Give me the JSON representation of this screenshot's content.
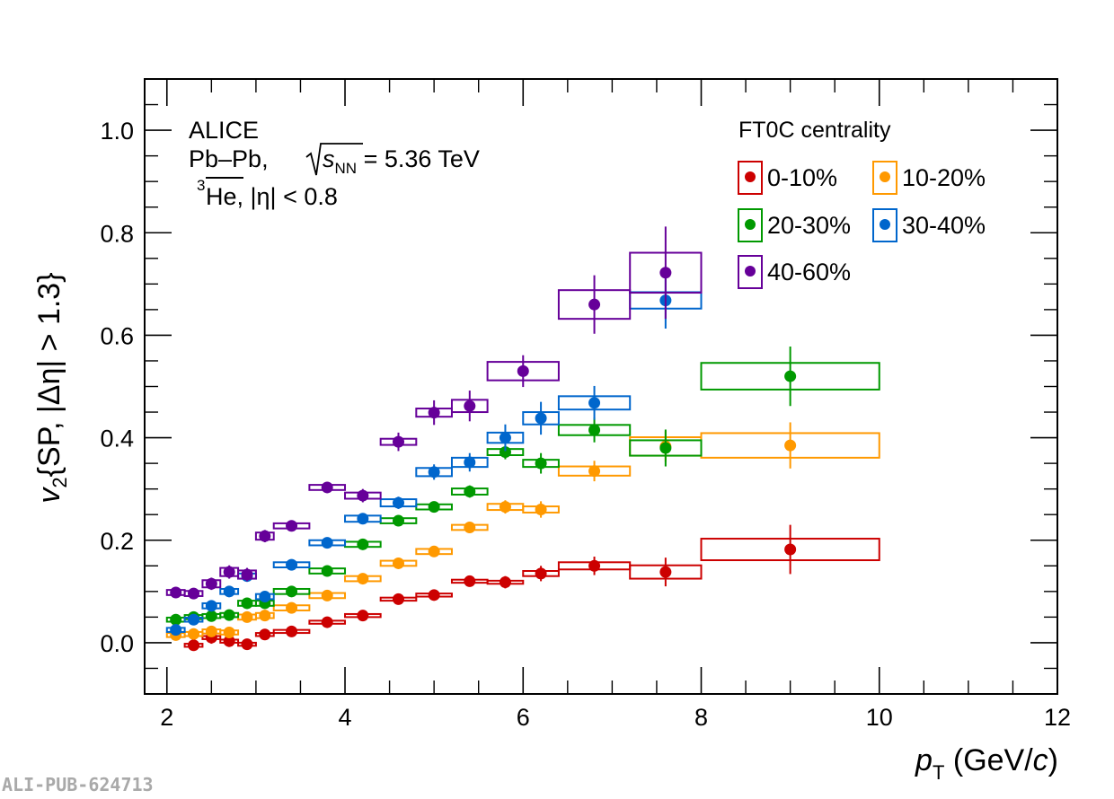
{
  "chart_data": {
    "type": "scatter",
    "title": "",
    "xlabel": "p_T (GeV/c)",
    "xlabel_parts": {
      "main": "p",
      "sub": "T",
      "units_open": " (GeV/",
      "units_c": "c",
      "units_close": ")"
    },
    "ylabel": "v2{SP, |Δη| > 1.3}",
    "ylabel_parts": {
      "main": "v",
      "sub": "2",
      "rest": "{SP, |Δη| > 1.3}"
    },
    "xlim": [
      1.75,
      12
    ],
    "ylim": [
      -0.1,
      1.1
    ],
    "x_ticks": [
      2,
      4,
      6,
      8,
      10,
      12
    ],
    "x_tick_labels": [
      "2",
      "4",
      "6",
      "8",
      "10",
      "12"
    ],
    "y_ticks": [
      0.0,
      0.2,
      0.4,
      0.6,
      0.8,
      1.0
    ],
    "y_tick_labels": [
      "0.0",
      "0.2",
      "0.4",
      "0.6",
      "0.8",
      "1.0"
    ],
    "grid": false,
    "annotations": {
      "experiment": "ALICE",
      "system": "Pb–Pb,",
      "energy_prefix": "s",
      "energy_sub": "NN",
      "energy_value": " = 5.36 TeV",
      "particle_sup": "3",
      "particle": "He",
      "particle_cut": ", |η| < 0.8"
    },
    "legend": {
      "title": "FT0C centrality",
      "placement": "top-right",
      "columns": 2
    },
    "series": [
      {
        "name": "0-10%",
        "color": "#cc0000",
        "points": [
          {
            "x": 2.3,
            "y": -0.005,
            "xlo": 2.2,
            "xhi": 2.4,
            "stat": 0.01,
            "syst": 0.003
          },
          {
            "x": 2.5,
            "y": 0.01,
            "xlo": 2.4,
            "xhi": 2.6,
            "stat": 0.012,
            "syst": 0.003
          },
          {
            "x": 2.7,
            "y": 0.003,
            "xlo": 2.6,
            "xhi": 2.8,
            "stat": 0.01,
            "syst": 0.003
          },
          {
            "x": 2.9,
            "y": -0.003,
            "xlo": 2.8,
            "xhi": 3.0,
            "stat": 0.01,
            "syst": 0.003
          },
          {
            "x": 3.1,
            "y": 0.016,
            "xlo": 3.0,
            "xhi": 3.2,
            "stat": 0.01,
            "syst": 0.003
          },
          {
            "x": 3.4,
            "y": 0.022,
            "xlo": 3.2,
            "xhi": 3.6,
            "stat": 0.008,
            "syst": 0.003
          },
          {
            "x": 3.8,
            "y": 0.04,
            "xlo": 3.6,
            "xhi": 4.0,
            "stat": 0.008,
            "syst": 0.003
          },
          {
            "x": 4.2,
            "y": 0.053,
            "xlo": 4.0,
            "xhi": 4.4,
            "stat": 0.008,
            "syst": 0.003
          },
          {
            "x": 4.6,
            "y": 0.085,
            "xlo": 4.4,
            "xhi": 4.8,
            "stat": 0.008,
            "syst": 0.003
          },
          {
            "x": 5.0,
            "y": 0.093,
            "xlo": 4.8,
            "xhi": 5.2,
            "stat": 0.008,
            "syst": 0.003
          },
          {
            "x": 5.4,
            "y": 0.12,
            "xlo": 5.2,
            "xhi": 5.6,
            "stat": 0.009,
            "syst": 0.003
          },
          {
            "x": 5.8,
            "y": 0.118,
            "xlo": 5.6,
            "xhi": 6.0,
            "stat": 0.012,
            "syst": 0.003
          },
          {
            "x": 6.2,
            "y": 0.135,
            "xlo": 6.0,
            "xhi": 6.4,
            "stat": 0.015,
            "syst": 0.005
          },
          {
            "x": 6.8,
            "y": 0.15,
            "xlo": 6.4,
            "xhi": 7.2,
            "stat": 0.018,
            "syst": 0.007
          },
          {
            "x": 7.6,
            "y": 0.138,
            "xlo": 7.2,
            "xhi": 8.0,
            "stat": 0.028,
            "syst": 0.013
          },
          {
            "x": 9.0,
            "y": 0.182,
            "xlo": 8.0,
            "xhi": 10.0,
            "stat": 0.048,
            "syst": 0.021
          }
        ]
      },
      {
        "name": "10-20%",
        "color": "#ff9900",
        "points": [
          {
            "x": 2.1,
            "y": 0.015,
            "xlo": 2.0,
            "xhi": 2.2,
            "stat": 0.008,
            "syst": 0.004
          },
          {
            "x": 2.3,
            "y": 0.017,
            "xlo": 2.2,
            "xhi": 2.4,
            "stat": 0.008,
            "syst": 0.004
          },
          {
            "x": 2.5,
            "y": 0.022,
            "xlo": 2.4,
            "xhi": 2.6,
            "stat": 0.008,
            "syst": 0.004
          },
          {
            "x": 2.7,
            "y": 0.02,
            "xlo": 2.6,
            "xhi": 2.8,
            "stat": 0.008,
            "syst": 0.004
          },
          {
            "x": 2.9,
            "y": 0.05,
            "xlo": 2.8,
            "xhi": 3.0,
            "stat": 0.008,
            "syst": 0.005
          },
          {
            "x": 3.1,
            "y": 0.053,
            "xlo": 3.0,
            "xhi": 3.2,
            "stat": 0.008,
            "syst": 0.005
          },
          {
            "x": 3.4,
            "y": 0.068,
            "xlo": 3.2,
            "xhi": 3.6,
            "stat": 0.008,
            "syst": 0.005
          },
          {
            "x": 3.8,
            "y": 0.092,
            "xlo": 3.6,
            "xhi": 4.0,
            "stat": 0.008,
            "syst": 0.005
          },
          {
            "x": 4.2,
            "y": 0.125,
            "xlo": 4.0,
            "xhi": 4.4,
            "stat": 0.008,
            "syst": 0.005
          },
          {
            "x": 4.6,
            "y": 0.155,
            "xlo": 4.4,
            "xhi": 4.8,
            "stat": 0.008,
            "syst": 0.005
          },
          {
            "x": 5.0,
            "y": 0.178,
            "xlo": 4.8,
            "xhi": 5.2,
            "stat": 0.009,
            "syst": 0.005
          },
          {
            "x": 5.4,
            "y": 0.225,
            "xlo": 5.2,
            "xhi": 5.6,
            "stat": 0.01,
            "syst": 0.005
          },
          {
            "x": 5.8,
            "y": 0.265,
            "xlo": 5.6,
            "xhi": 6.0,
            "stat": 0.013,
            "syst": 0.006
          },
          {
            "x": 6.2,
            "y": 0.26,
            "xlo": 6.0,
            "xhi": 6.4,
            "stat": 0.016,
            "syst": 0.006
          },
          {
            "x": 6.8,
            "y": 0.335,
            "xlo": 6.4,
            "xhi": 7.2,
            "stat": 0.02,
            "syst": 0.009
          },
          {
            "x": 7.6,
            "y": 0.383,
            "xlo": 7.2,
            "xhi": 8.0,
            "stat": 0.03,
            "syst": 0.018
          },
          {
            "x": 9.0,
            "y": 0.385,
            "xlo": 8.0,
            "xhi": 10.0,
            "stat": 0.045,
            "syst": 0.024
          }
        ]
      },
      {
        "name": "20-30%",
        "color": "#009900",
        "points": [
          {
            "x": 2.1,
            "y": 0.045,
            "xlo": 2.0,
            "xhi": 2.2,
            "stat": 0.008,
            "syst": 0.004
          },
          {
            "x": 2.3,
            "y": 0.05,
            "xlo": 2.2,
            "xhi": 2.4,
            "stat": 0.008,
            "syst": 0.004
          },
          {
            "x": 2.5,
            "y": 0.052,
            "xlo": 2.4,
            "xhi": 2.6,
            "stat": 0.008,
            "syst": 0.004
          },
          {
            "x": 2.7,
            "y": 0.054,
            "xlo": 2.6,
            "xhi": 2.8,
            "stat": 0.008,
            "syst": 0.004
          },
          {
            "x": 2.9,
            "y": 0.077,
            "xlo": 2.8,
            "xhi": 3.0,
            "stat": 0.008,
            "syst": 0.005
          },
          {
            "x": 3.1,
            "y": 0.077,
            "xlo": 3.0,
            "xhi": 3.2,
            "stat": 0.008,
            "syst": 0.005
          },
          {
            "x": 3.4,
            "y": 0.1,
            "xlo": 3.2,
            "xhi": 3.6,
            "stat": 0.008,
            "syst": 0.005
          },
          {
            "x": 3.8,
            "y": 0.14,
            "xlo": 3.6,
            "xhi": 4.0,
            "stat": 0.008,
            "syst": 0.005
          },
          {
            "x": 4.2,
            "y": 0.192,
            "xlo": 4.0,
            "xhi": 4.4,
            "stat": 0.008,
            "syst": 0.005
          },
          {
            "x": 4.6,
            "y": 0.238,
            "xlo": 4.4,
            "xhi": 4.8,
            "stat": 0.009,
            "syst": 0.005
          },
          {
            "x": 5.0,
            "y": 0.265,
            "xlo": 4.8,
            "xhi": 5.2,
            "stat": 0.01,
            "syst": 0.005
          },
          {
            "x": 5.4,
            "y": 0.295,
            "xlo": 5.2,
            "xhi": 5.6,
            "stat": 0.012,
            "syst": 0.006
          },
          {
            "x": 5.8,
            "y": 0.372,
            "xlo": 5.6,
            "xhi": 6.0,
            "stat": 0.014,
            "syst": 0.006
          },
          {
            "x": 6.2,
            "y": 0.35,
            "xlo": 6.0,
            "xhi": 6.4,
            "stat": 0.02,
            "syst": 0.007
          },
          {
            "x": 6.8,
            "y": 0.415,
            "xlo": 6.4,
            "xhi": 7.2,
            "stat": 0.024,
            "syst": 0.01
          },
          {
            "x": 7.6,
            "y": 0.38,
            "xlo": 7.2,
            "xhi": 8.0,
            "stat": 0.036,
            "syst": 0.015
          },
          {
            "x": 9.0,
            "y": 0.52,
            "xlo": 8.0,
            "xhi": 10.0,
            "stat": 0.058,
            "syst": 0.026
          }
        ]
      },
      {
        "name": "30-40%",
        "color": "#0066cc",
        "points": [
          {
            "x": 2.1,
            "y": 0.025,
            "xlo": 2.0,
            "xhi": 2.2,
            "stat": 0.008,
            "syst": 0.004
          },
          {
            "x": 2.3,
            "y": 0.045,
            "xlo": 2.2,
            "xhi": 2.4,
            "stat": 0.008,
            "syst": 0.004
          },
          {
            "x": 2.5,
            "y": 0.072,
            "xlo": 2.4,
            "xhi": 2.6,
            "stat": 0.009,
            "syst": 0.005
          },
          {
            "x": 2.7,
            "y": 0.1,
            "xlo": 2.6,
            "xhi": 2.8,
            "stat": 0.009,
            "syst": 0.005
          },
          {
            "x": 2.9,
            "y": 0.13,
            "xlo": 2.8,
            "xhi": 3.0,
            "stat": 0.009,
            "syst": 0.005
          },
          {
            "x": 3.1,
            "y": 0.09,
            "xlo": 3.0,
            "xhi": 3.2,
            "stat": 0.01,
            "syst": 0.005
          },
          {
            "x": 3.4,
            "y": 0.152,
            "xlo": 3.2,
            "xhi": 3.6,
            "stat": 0.009,
            "syst": 0.005
          },
          {
            "x": 3.8,
            "y": 0.195,
            "xlo": 3.6,
            "xhi": 4.0,
            "stat": 0.009,
            "syst": 0.005
          },
          {
            "x": 4.2,
            "y": 0.242,
            "xlo": 4.0,
            "xhi": 4.4,
            "stat": 0.01,
            "syst": 0.006
          },
          {
            "x": 4.6,
            "y": 0.273,
            "xlo": 4.4,
            "xhi": 4.8,
            "stat": 0.012,
            "syst": 0.007
          },
          {
            "x": 5.0,
            "y": 0.333,
            "xlo": 4.8,
            "xhi": 5.2,
            "stat": 0.015,
            "syst": 0.008
          },
          {
            "x": 5.4,
            "y": 0.352,
            "xlo": 5.2,
            "xhi": 5.6,
            "stat": 0.018,
            "syst": 0.009
          },
          {
            "x": 5.8,
            "y": 0.4,
            "xlo": 5.6,
            "xhi": 6.0,
            "stat": 0.026,
            "syst": 0.01
          },
          {
            "x": 6.2,
            "y": 0.438,
            "xlo": 6.0,
            "xhi": 6.4,
            "stat": 0.032,
            "syst": 0.012
          },
          {
            "x": 6.8,
            "y": 0.468,
            "xlo": 6.4,
            "xhi": 7.2,
            "stat": 0.033,
            "syst": 0.013
          },
          {
            "x": 7.6,
            "y": 0.668,
            "xlo": 7.2,
            "xhi": 8.0,
            "stat": 0.055,
            "syst": 0.016
          }
        ]
      },
      {
        "name": "40-60%",
        "color": "#660099",
        "points": [
          {
            "x": 2.1,
            "y": 0.098,
            "xlo": 2.0,
            "xhi": 2.2,
            "stat": 0.01,
            "syst": 0.005
          },
          {
            "x": 2.3,
            "y": 0.096,
            "xlo": 2.2,
            "xhi": 2.4,
            "stat": 0.01,
            "syst": 0.005
          },
          {
            "x": 2.5,
            "y": 0.115,
            "xlo": 2.4,
            "xhi": 2.6,
            "stat": 0.012,
            "syst": 0.007
          },
          {
            "x": 2.7,
            "y": 0.138,
            "xlo": 2.6,
            "xhi": 2.8,
            "stat": 0.013,
            "syst": 0.008
          },
          {
            "x": 2.9,
            "y": 0.133,
            "xlo": 2.8,
            "xhi": 3.0,
            "stat": 0.013,
            "syst": 0.008
          },
          {
            "x": 3.1,
            "y": 0.208,
            "xlo": 3.0,
            "xhi": 3.2,
            "stat": 0.012,
            "syst": 0.007
          },
          {
            "x": 3.4,
            "y": 0.228,
            "xlo": 3.2,
            "xhi": 3.6,
            "stat": 0.01,
            "syst": 0.005
          },
          {
            "x": 3.8,
            "y": 0.303,
            "xlo": 3.6,
            "xhi": 4.0,
            "stat": 0.01,
            "syst": 0.005
          },
          {
            "x": 4.2,
            "y": 0.287,
            "xlo": 4.0,
            "xhi": 4.4,
            "stat": 0.013,
            "syst": 0.006
          },
          {
            "x": 4.6,
            "y": 0.392,
            "xlo": 4.4,
            "xhi": 4.8,
            "stat": 0.018,
            "syst": 0.006
          },
          {
            "x": 5.0,
            "y": 0.449,
            "xlo": 4.8,
            "xhi": 5.2,
            "stat": 0.024,
            "syst": 0.008
          },
          {
            "x": 5.4,
            "y": 0.462,
            "xlo": 5.2,
            "xhi": 5.6,
            "stat": 0.03,
            "syst": 0.012
          },
          {
            "x": 6.0,
            "y": 0.53,
            "xlo": 5.6,
            "xhi": 6.4,
            "stat": 0.031,
            "syst": 0.018
          },
          {
            "x": 6.8,
            "y": 0.66,
            "xlo": 6.4,
            "xhi": 7.2,
            "stat": 0.057,
            "syst": 0.028
          },
          {
            "x": 7.6,
            "y": 0.722,
            "xlo": 7.2,
            "xhi": 8.0,
            "stat": 0.09,
            "syst": 0.039
          }
        ]
      }
    ]
  },
  "watermark": "ALI-PUB-624713"
}
